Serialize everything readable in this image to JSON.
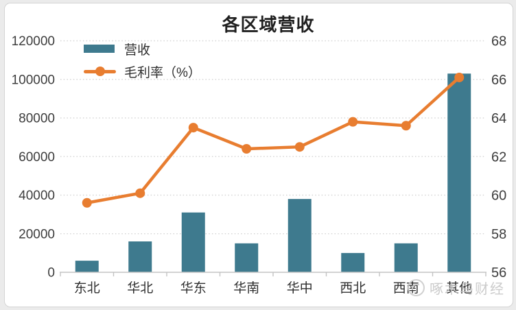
{
  "chart": {
    "title": "各区域营收",
    "legend_revenue": "营收",
    "legend_margin": "毛利率（%）",
    "watermark": "啄木鸟财经"
  },
  "chart_data": {
    "type": "bar+line",
    "categories": [
      "东北",
      "华北",
      "华东",
      "华南",
      "华中",
      "西北",
      "西南",
      "其他"
    ],
    "series": [
      {
        "name": "营收",
        "type": "bar",
        "axis": "left",
        "values": [
          6000,
          16000,
          31000,
          15000,
          38000,
          10000,
          15000,
          103000
        ]
      },
      {
        "name": "毛利率（%）",
        "type": "line",
        "axis": "right",
        "values": [
          59.6,
          60.1,
          63.5,
          62.4,
          62.5,
          63.8,
          63.6,
          66.1
        ]
      }
    ],
    "left_axis": {
      "ticks": [
        0,
        20000,
        40000,
        60000,
        80000,
        100000,
        120000
      ],
      "range": [
        0,
        120000
      ]
    },
    "right_axis": {
      "ticks": [
        56,
        58,
        60,
        62,
        64,
        66,
        68
      ],
      "range": [
        56,
        68
      ]
    },
    "title": "各区域营收",
    "xlabel": "",
    "ylabel_left": "",
    "ylabel_right": "",
    "grid": "horizontal-dotted",
    "legend_position": "top-left-inside"
  },
  "colors": {
    "bar": "#3e7a8e",
    "line": "#e87d30",
    "grid": "#d6d6d6",
    "axis": "#c3c3c3",
    "tick_text": "#3d3d3d",
    "title_text": "#1f1f1f",
    "watermark": "#c6c6c6"
  }
}
